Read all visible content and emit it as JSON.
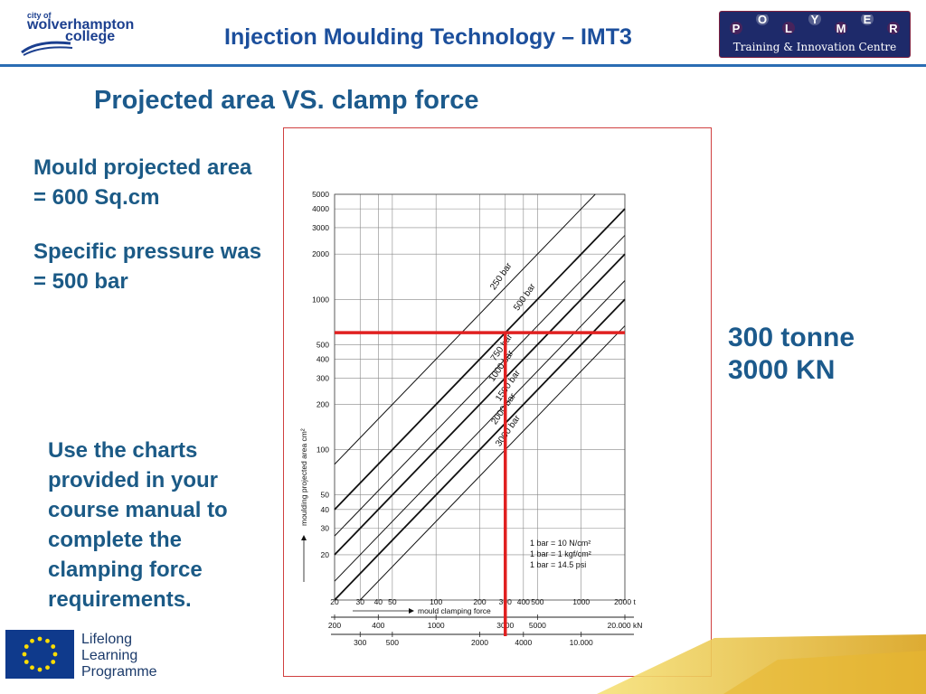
{
  "header": {
    "college_logo": {
      "line1": "city of",
      "line2": "wolverhampton",
      "line3": "college"
    },
    "title": "Injection Moulding Technology – IMT3",
    "polymer_logo": {
      "letters": [
        "P",
        "O",
        "L",
        "Y",
        "M",
        "E",
        "R"
      ],
      "subtitle": "Training & Innovation Centre"
    }
  },
  "slide_title": "Projected area VS. clamp force",
  "notes": {
    "area": "Mould projected area = 600 Sq.cm",
    "pressure": "Specific pressure was = 500 bar",
    "instructions": "Use the charts provided in your course manual to complete the clamping force requirements."
  },
  "answer": {
    "tonnes": "300 tonne",
    "kn": "3000 KN"
  },
  "footer": {
    "llp": [
      "Lifelong",
      "Learning",
      "Programme"
    ]
  },
  "colors": {
    "accent": "#1c5a8c",
    "rule": "#2a6db3",
    "highlight": "#e02020"
  },
  "chart_data": {
    "type": "line",
    "scale": "log-log",
    "xlabel": "mould clamping force",
    "ylabel": "moulding projected area cm²",
    "xlim": [
      20,
      2000
    ],
    "ylim": [
      10,
      5000
    ],
    "x_ticks_t": [
      "20",
      "30",
      "40",
      "50",
      "100",
      "200",
      "300",
      "400",
      "500",
      "1000",
      "2000 t"
    ],
    "x_ticks_t_values": [
      20,
      30,
      40,
      50,
      100,
      200,
      300,
      400,
      500,
      1000,
      2000
    ],
    "kn_row1": [
      "200",
      "400",
      "1000",
      "3000",
      "5000",
      "20.000 kN"
    ],
    "kn_row1_values": [
      20,
      40,
      100,
      300,
      500,
      2000
    ],
    "kn_row2": [
      "300",
      "500",
      "2000",
      "4000",
      "10.000"
    ],
    "kn_row2_values": [
      30,
      50,
      200,
      400,
      1000
    ],
    "y_ticks": [
      "5000",
      "4000",
      "3000",
      "2000",
      "1000",
      "500",
      "400",
      "300",
      "200",
      "100",
      "50",
      "40",
      "30",
      "20"
    ],
    "y_ticks_values": [
      5000,
      4000,
      3000,
      2000,
      1000,
      500,
      400,
      300,
      200,
      100,
      50,
      40,
      30,
      20
    ],
    "series": [
      {
        "name": "250 bar",
        "pressure_bar": 250
      },
      {
        "name": "500 bar",
        "pressure_bar": 500
      },
      {
        "name": "750 bar",
        "pressure_bar": 750
      },
      {
        "name": "1000 bar",
        "pressure_bar": 1000
      },
      {
        "name": "1500 bar",
        "pressure_bar": 1500
      },
      {
        "name": "2000 bar",
        "pressure_bar": 2000
      },
      {
        "name": "3000 bar",
        "pressure_bar": 3000
      }
    ],
    "highlight": {
      "area_cm2": 600,
      "pressure_bar": 500,
      "clamp_force_t": 300
    },
    "legend_note": [
      "1 bar = 10 N/cm²",
      "1 bar = 1 kgf/cm²",
      "1 bar = 14.5 psi"
    ]
  }
}
